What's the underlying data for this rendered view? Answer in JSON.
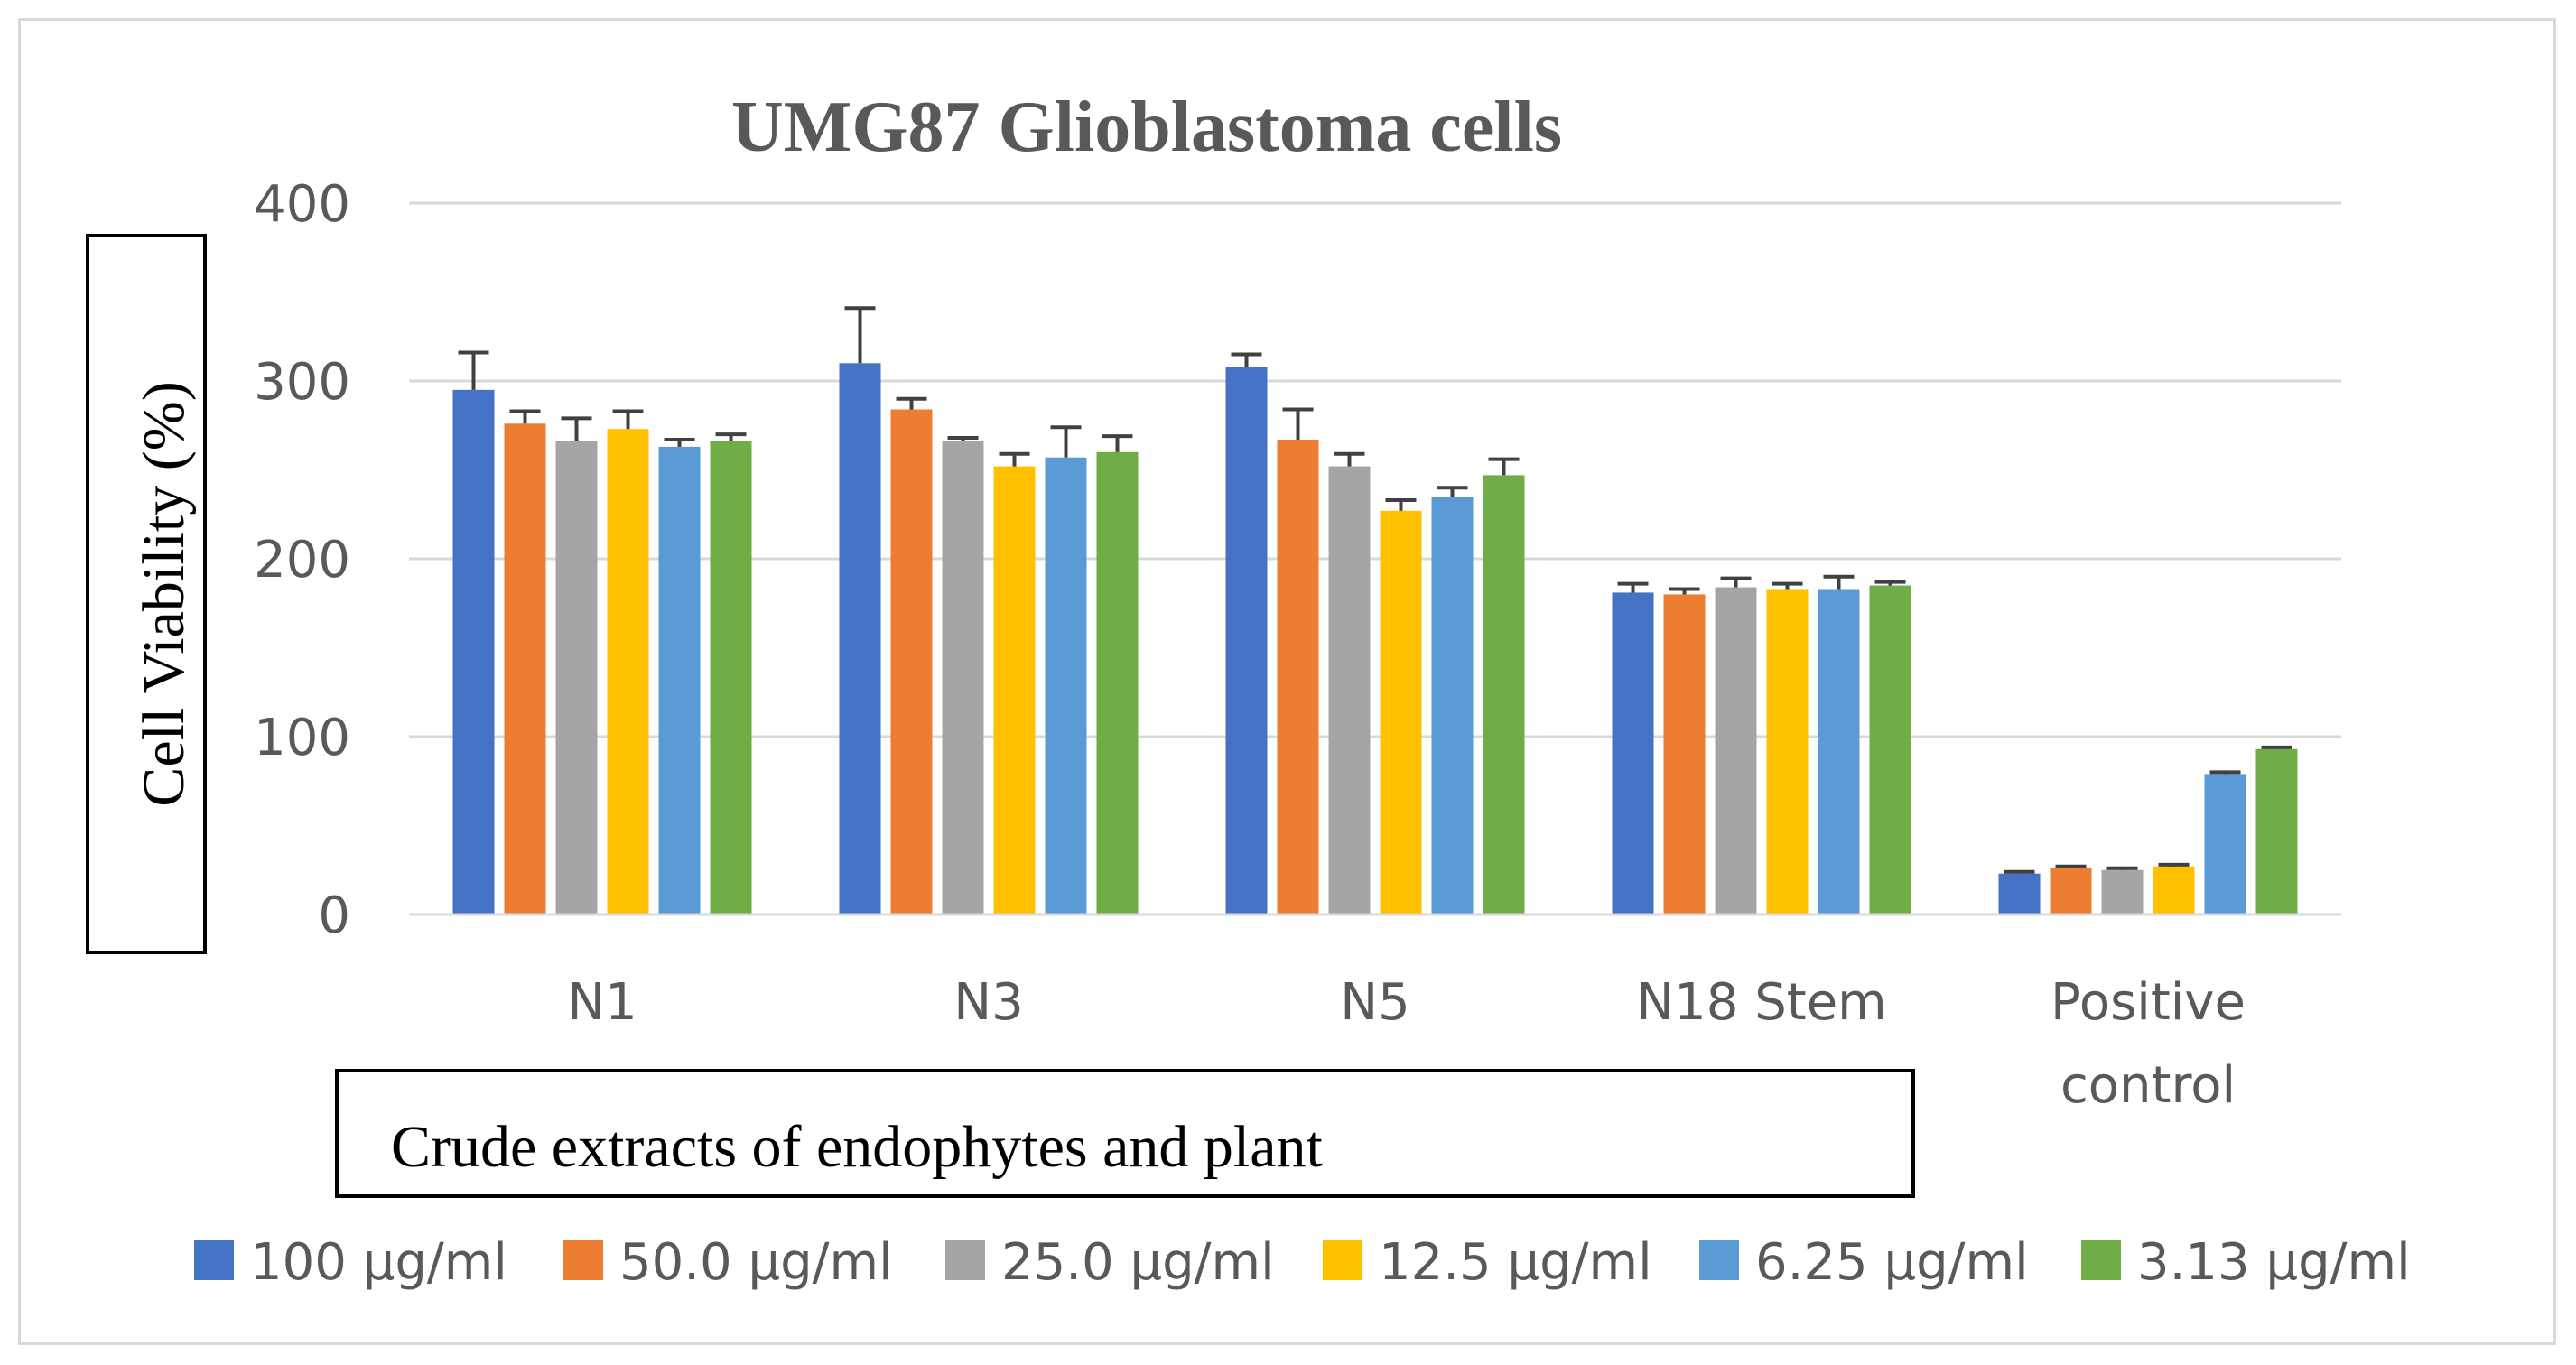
{
  "chart_data": {
    "type": "bar",
    "title": "UMG87 Glioblastoma cells",
    "ylabel": "Cell Viability (%)",
    "xlabel": "Crude extracts of endophytes and plant",
    "ylim": [
      0,
      400
    ],
    "yticks": [
      0,
      100,
      200,
      300,
      400
    ],
    "grid": true,
    "legend_position": "bottom",
    "categories": [
      "N1",
      "N3",
      "N5",
      "N18 Stem",
      "Positive control"
    ],
    "series": [
      {
        "name": "100 μg/ml",
        "color": "#4472C4",
        "values": [
          295,
          310,
          308,
          181,
          23
        ],
        "errors": [
          21,
          31,
          7,
          5,
          1
        ]
      },
      {
        "name": "50.0 μg/ml",
        "color": "#ED7D31",
        "values": [
          276,
          284,
          267,
          180,
          26
        ],
        "errors": [
          7,
          6,
          17,
          3,
          1
        ]
      },
      {
        "name": "25.0 μg/ml",
        "color": "#A5A5A5",
        "values": [
          266,
          266,
          252,
          184,
          25
        ],
        "errors": [
          13,
          2,
          7,
          5,
          1
        ]
      },
      {
        "name": "12.5 μg/ml",
        "color": "#FFC000",
        "values": [
          273,
          252,
          227,
          183,
          27
        ],
        "errors": [
          10,
          7,
          6,
          3,
          1
        ]
      },
      {
        "name": "6.25 μg/ml",
        "color": "#5B9BD5",
        "values": [
          263,
          257,
          235,
          183,
          79
        ],
        "errors": [
          4,
          17,
          5,
          7,
          1
        ]
      },
      {
        "name": "3.13 μg/ml",
        "color": "#70AD47",
        "values": [
          266,
          260,
          247,
          185,
          93
        ],
        "errors": [
          4,
          9,
          9,
          2,
          1
        ]
      }
    ]
  }
}
